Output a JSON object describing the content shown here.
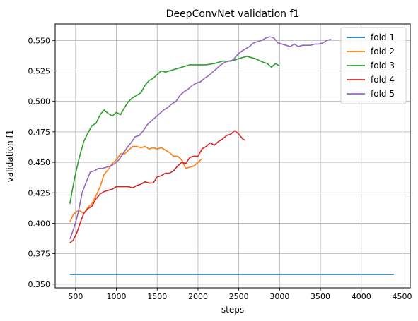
{
  "chart_data": {
    "type": "line",
    "title": "DeepConvNet validation f1",
    "xlabel": "steps",
    "ylabel": "validation f1",
    "xlim": [
      250,
      4600
    ],
    "ylim": [
      0.347,
      0.5635
    ],
    "xticks": [
      500,
      1000,
      1500,
      2000,
      2500,
      3000,
      3500,
      4000,
      4500
    ],
    "yticks": [
      0.35,
      0.375,
      0.4,
      0.425,
      0.45,
      0.475,
      0.5,
      0.525,
      0.55
    ],
    "xtick_labels": [
      "500",
      "1000",
      "1500",
      "2000",
      "2500",
      "3000",
      "3500",
      "4000",
      "4500"
    ],
    "ytick_labels": [
      "0.350",
      "0.375",
      "0.400",
      "0.425",
      "0.450",
      "0.475",
      "0.500",
      "0.525",
      "0.550"
    ],
    "grid": true,
    "legend_position": "top-right",
    "series": [
      {
        "name": "fold 1",
        "color": "#1f77b4",
        "x": [
          430,
          4400
        ],
        "y": [
          0.358,
          0.358
        ]
      },
      {
        "name": "fold 2",
        "color": "#ff7f0e",
        "x": [
          430,
          470,
          520,
          560,
          600,
          650,
          700,
          760,
          800,
          850,
          900,
          950,
          1000,
          1050,
          1100,
          1150,
          1200,
          1250,
          1300,
          1350,
          1400,
          1450,
          1500,
          1550,
          1600,
          1650,
          1700,
          1750,
          1800,
          1850,
          1900,
          1950,
          2000,
          2050
        ],
        "y": [
          0.401,
          0.407,
          0.41,
          0.41,
          0.408,
          0.413,
          0.416,
          0.424,
          0.43,
          0.44,
          0.444,
          0.449,
          0.452,
          0.457,
          0.457,
          0.46,
          0.463,
          0.463,
          0.462,
          0.463,
          0.461,
          0.462,
          0.461,
          0.462,
          0.46,
          0.458,
          0.455,
          0.455,
          0.452,
          0.445,
          0.446,
          0.447,
          0.45,
          0.453
        ]
      },
      {
        "name": "fold 3",
        "color": "#2ca02c",
        "x": [
          430,
          460,
          500,
          550,
          600,
          650,
          700,
          750,
          800,
          850,
          900,
          950,
          1000,
          1050,
          1100,
          1150,
          1200,
          1250,
          1300,
          1350,
          1400,
          1450,
          1500,
          1550,
          1600,
          1650,
          1700,
          1800,
          1900,
          2000,
          2100,
          2200,
          2300,
          2400,
          2500,
          2600,
          2700,
          2800,
          2850,
          2900,
          2950,
          3000
        ],
        "y": [
          0.416,
          0.427,
          0.441,
          0.455,
          0.467,
          0.474,
          0.48,
          0.482,
          0.489,
          0.493,
          0.49,
          0.488,
          0.491,
          0.489,
          0.495,
          0.5,
          0.503,
          0.505,
          0.507,
          0.513,
          0.517,
          0.519,
          0.522,
          0.525,
          0.524,
          0.525,
          0.526,
          0.528,
          0.53,
          0.53,
          0.53,
          0.531,
          0.533,
          0.533,
          0.535,
          0.537,
          0.535,
          0.532,
          0.531,
          0.528,
          0.531,
          0.529
        ]
      },
      {
        "name": "fold 4",
        "color": "#d62728",
        "x": [
          430,
          470,
          520,
          560,
          600,
          650,
          700,
          750,
          800,
          850,
          900,
          950,
          1000,
          1050,
          1100,
          1150,
          1200,
          1250,
          1300,
          1350,
          1400,
          1450,
          1500,
          1550,
          1600,
          1650,
          1700,
          1750,
          1800,
          1850,
          1900,
          1950,
          2000,
          2050,
          2100,
          2150,
          2200,
          2250,
          2300,
          2350,
          2400,
          2450,
          2500,
          2550,
          2580
        ],
        "y": [
          0.384,
          0.386,
          0.393,
          0.401,
          0.408,
          0.412,
          0.414,
          0.42,
          0.424,
          0.426,
          0.427,
          0.428,
          0.43,
          0.43,
          0.43,
          0.43,
          0.429,
          0.431,
          0.432,
          0.434,
          0.433,
          0.433,
          0.438,
          0.439,
          0.441,
          0.441,
          0.443,
          0.447,
          0.45,
          0.449,
          0.454,
          0.455,
          0.455,
          0.461,
          0.463,
          0.466,
          0.464,
          0.467,
          0.469,
          0.472,
          0.473,
          0.476,
          0.473,
          0.469,
          0.468
        ]
      },
      {
        "name": "fold 5",
        "color": "#9467bd",
        "x": [
          430,
          480,
          530,
          580,
          620,
          680,
          730,
          780,
          830,
          880,
          930,
          980,
          1030,
          1080,
          1130,
          1180,
          1230,
          1280,
          1330,
          1380,
          1430,
          1480,
          1530,
          1580,
          1630,
          1680,
          1730,
          1780,
          1830,
          1880,
          1930,
          1980,
          2030,
          2080,
          2130,
          2180,
          2230,
          2280,
          2330,
          2380,
          2430,
          2480,
          2530,
          2580,
          2630,
          2680,
          2730,
          2780,
          2830,
          2880,
          2930,
          2980,
          3030,
          3080,
          3130,
          3180,
          3230,
          3280,
          3330,
          3380,
          3430,
          3480,
          3530,
          3580,
          3630
        ],
        "y": [
          0.387,
          0.396,
          0.408,
          0.425,
          0.432,
          0.442,
          0.443,
          0.445,
          0.445,
          0.446,
          0.447,
          0.449,
          0.452,
          0.457,
          0.462,
          0.466,
          0.471,
          0.472,
          0.476,
          0.481,
          0.484,
          0.487,
          0.49,
          0.493,
          0.495,
          0.498,
          0.5,
          0.505,
          0.508,
          0.51,
          0.513,
          0.515,
          0.516,
          0.519,
          0.521,
          0.524,
          0.527,
          0.53,
          0.532,
          0.533,
          0.534,
          0.538,
          0.541,
          0.543,
          0.545,
          0.548,
          0.549,
          0.55,
          0.552,
          0.553,
          0.552,
          0.548,
          0.547,
          0.546,
          0.545,
          0.547,
          0.545,
          0.546,
          0.546,
          0.546,
          0.547,
          0.547,
          0.548,
          0.55,
          0.551
        ]
      }
    ]
  }
}
